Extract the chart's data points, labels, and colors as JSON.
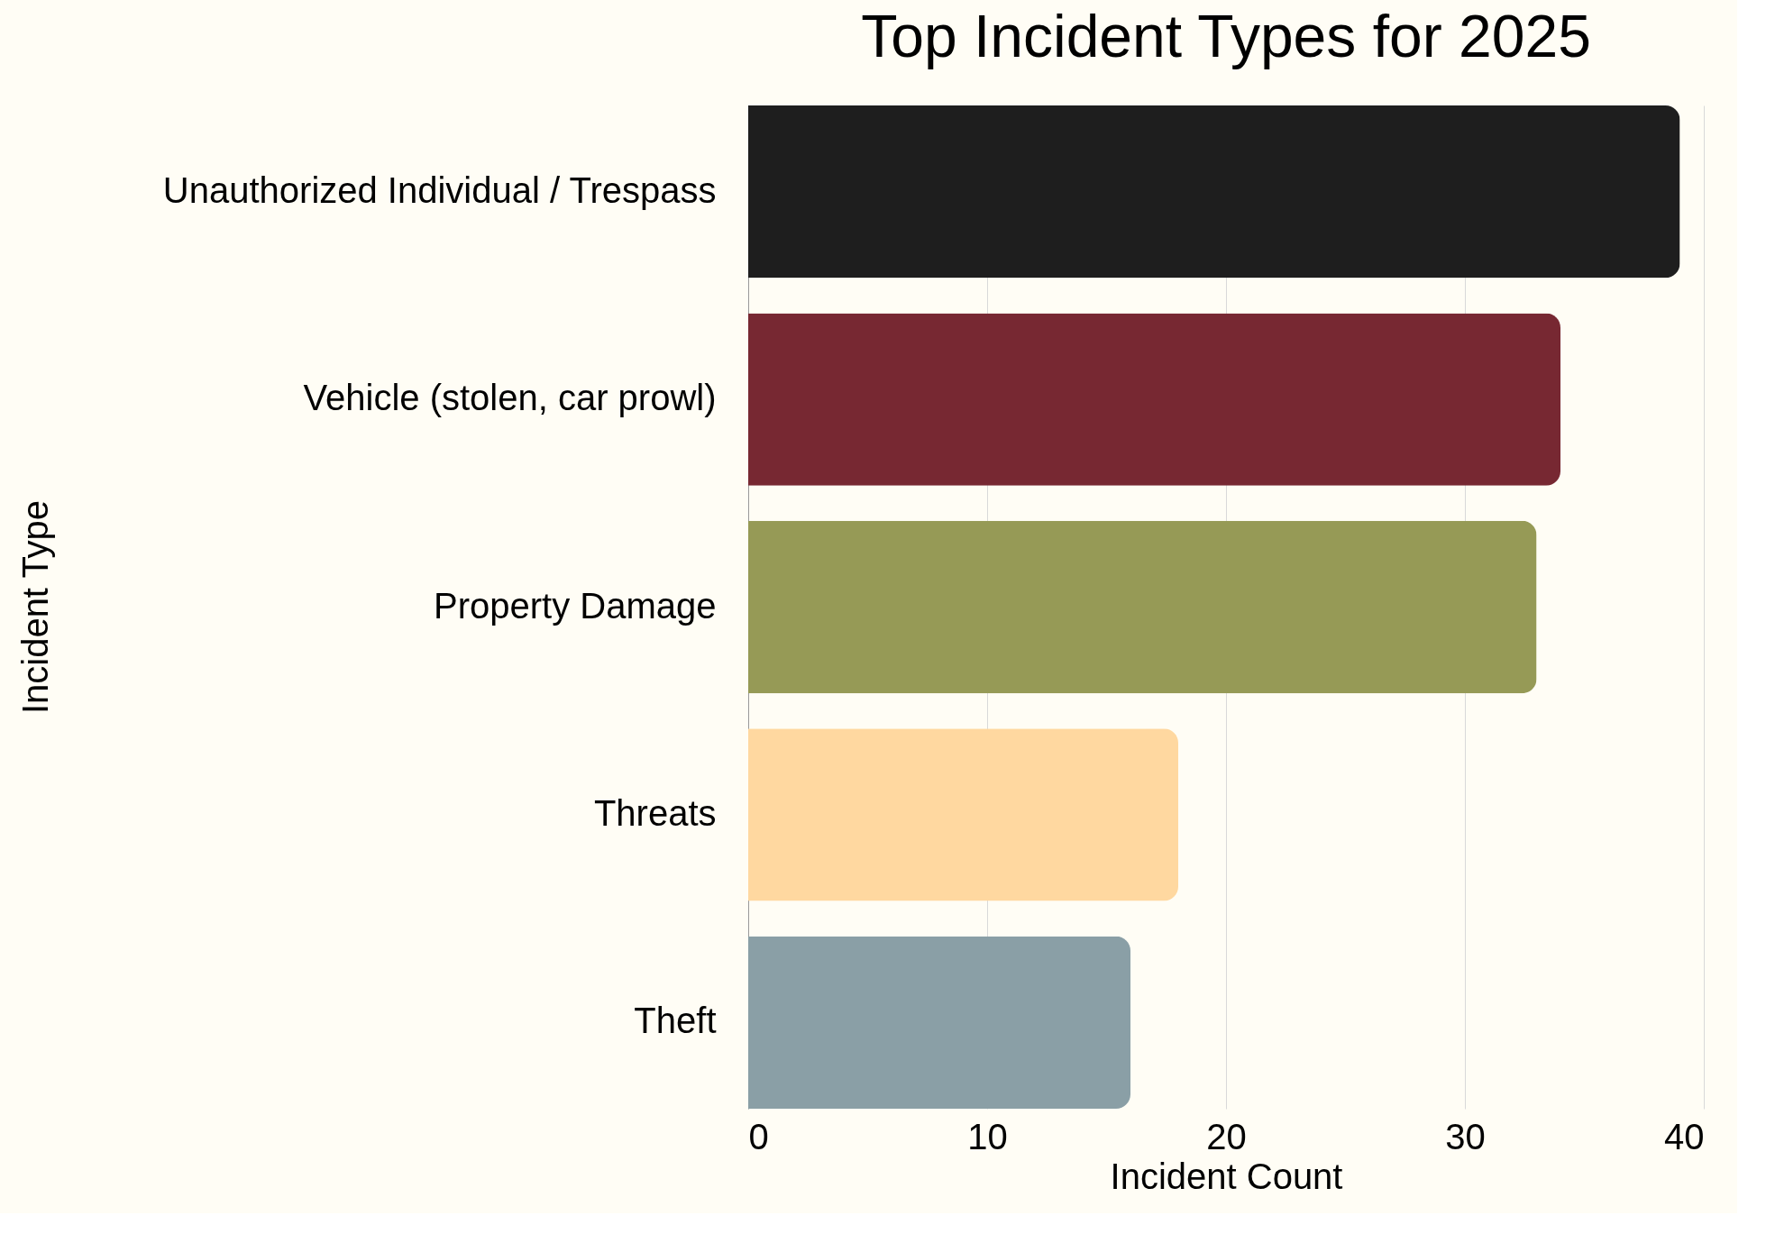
{
  "chart_data": {
    "type": "bar",
    "orientation": "horizontal",
    "title": "Top Incident Types for 2025",
    "xlabel": "Incident Count",
    "ylabel": "Incident Type",
    "categories": [
      "Unauthorized Individual / Trespass",
      "Vehicle (stolen, car prowl)",
      "Property Damage",
      "Threats",
      "Theft"
    ],
    "values": [
      39,
      34,
      33,
      18,
      16
    ],
    "colors": [
      "#1e1e1e",
      "#772832",
      "#969a56",
      "#ffd8a0",
      "#8a9fa6"
    ],
    "xlim": [
      0,
      40
    ],
    "xticks": [
      0,
      10,
      20,
      30,
      40
    ],
    "grid": "x"
  }
}
